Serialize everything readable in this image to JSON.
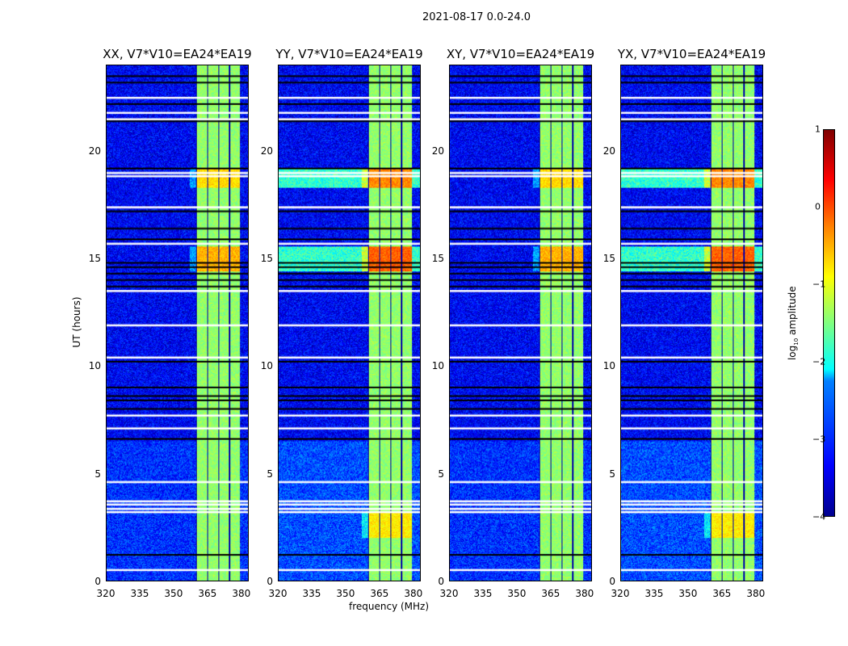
{
  "suptitle": "2021-08-17 0.0-24.0",
  "xlabel": "frequency (MHz)",
  "ylabel": "UT (hours)",
  "colorbar": {
    "label_pre": "log",
    "label_sub": "10",
    "label_post": " amplitude",
    "ticks": [
      "1",
      "0",
      "−1",
      "−2",
      "−3",
      "−4"
    ],
    "values": [
      1,
      0,
      -1,
      -2,
      -3,
      -4
    ],
    "range": [
      -4,
      1
    ],
    "colormap": "jet"
  },
  "chart_data": [
    {
      "type": "heatmap",
      "title": "XX, V7*V10=EA24*EA19",
      "xlim": [
        320,
        383.3
      ],
      "ylim": [
        0,
        24
      ],
      "xticks": [
        "320",
        "335",
        "350",
        "365",
        "380"
      ],
      "yticks": [
        "0",
        "5",
        "10",
        "15",
        "20"
      ],
      "band_mhz": [
        360,
        379.5
      ],
      "peak_level": 0.3
    },
    {
      "type": "heatmap",
      "title": "YY, V7*V10=EA24*EA19",
      "xlim": [
        320,
        383.3
      ],
      "ylim": [
        0,
        24
      ],
      "xticks": [
        "320",
        "335",
        "350",
        "365",
        "380"
      ],
      "yticks": [
        "0",
        "5",
        "10",
        "15",
        "20"
      ],
      "band_mhz": [
        360,
        379.5
      ],
      "peak_level": 0.7
    },
    {
      "type": "heatmap",
      "title": "XY, V7*V10=EA24*EA19",
      "xlim": [
        320,
        383.3
      ],
      "ylim": [
        0,
        24
      ],
      "xticks": [
        "320",
        "335",
        "350",
        "365",
        "380"
      ],
      "yticks": [
        "0",
        "5",
        "10",
        "15",
        "20"
      ],
      "band_mhz": [
        360,
        379.5
      ],
      "peak_level": 0.3
    },
    {
      "type": "heatmap",
      "title": "YX, V7*V10=EA24*EA19",
      "xlim": [
        320,
        383.3
      ],
      "ylim": [
        0,
        24
      ],
      "xticks": [
        "320",
        "335",
        "350",
        "365",
        "380"
      ],
      "yticks": [
        "0",
        "5",
        "10",
        "15",
        "20"
      ],
      "band_mhz": [
        360,
        379.5
      ],
      "peak_level": 0.7
    }
  ],
  "flagged_hours": [
    22.5,
    21.8,
    21.5,
    19.0,
    18.85,
    17.4,
    15.7,
    13.5,
    11.9,
    10.4,
    7.7,
    7.1,
    4.6,
    3.7,
    3.55,
    3.35,
    3.2,
    0.5
  ],
  "gap_hours": [
    23.5,
    23.2,
    22.2,
    21.4,
    19.2,
    17.2,
    16.4,
    15.9,
    14.8,
    14.6,
    14.3,
    14.0,
    13.7,
    10.2,
    9.0,
    8.6,
    8.4,
    8.0,
    6.6,
    1.2
  ]
}
